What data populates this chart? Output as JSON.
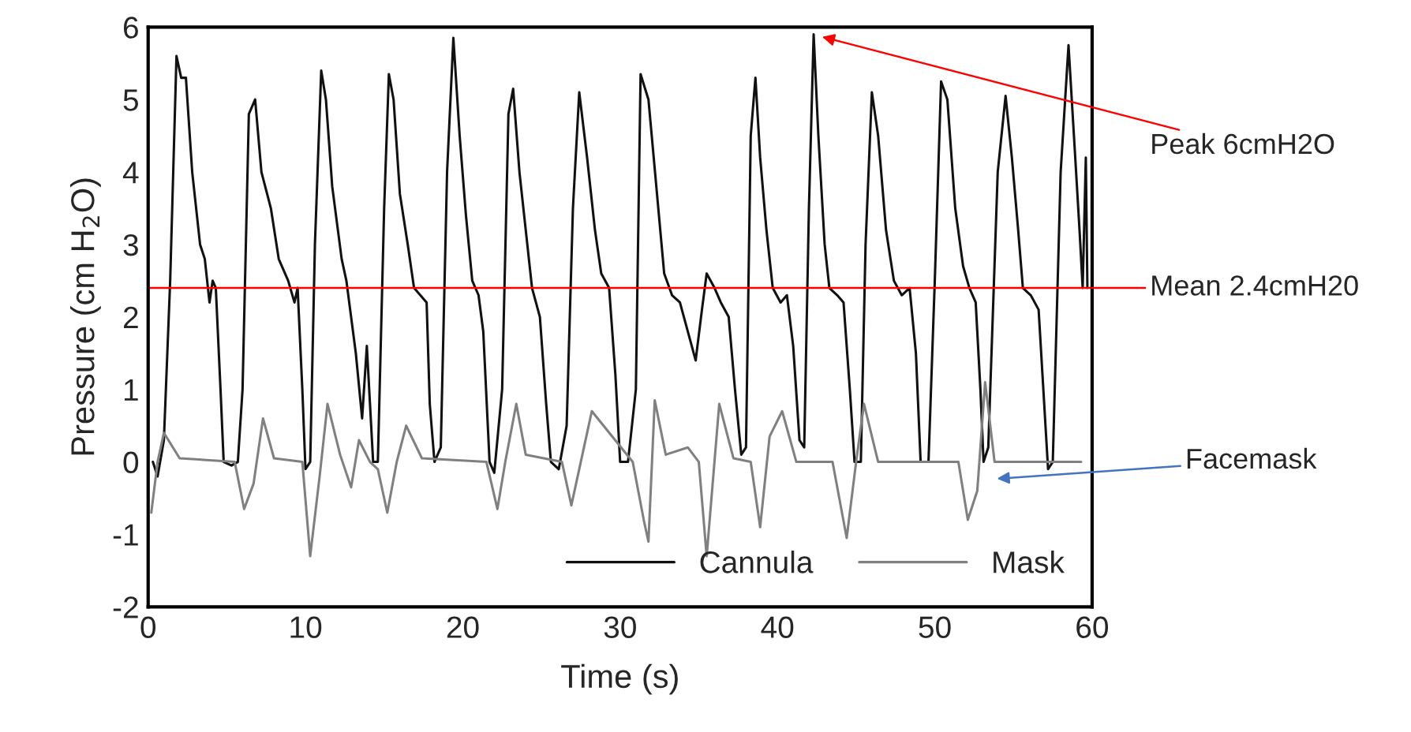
{
  "chart_data": {
    "type": "line",
    "xlabel": "Time (s)",
    "ylabel": "Pressure (cm H$_{2}$O)",
    "xlim": [
      0,
      60
    ],
    "xticks": [
      0,
      10,
      20,
      30,
      40,
      50,
      60
    ],
    "ylim": [
      -2,
      6
    ],
    "yticks": [
      -2,
      -1,
      0,
      1,
      2,
      3,
      4,
      5,
      6
    ],
    "grid": false,
    "legend": "bottom right",
    "marker": "none",
    "line_style": "solid",
    "series": [
      {
        "name": "Cannula",
        "color": "#111111",
        "x": [
          0.3,
          0.6,
          1.0,
          1.4,
          1.8,
          2.1,
          2.4,
          2.8,
          3.3,
          3.6,
          3.9,
          4.1,
          4.3,
          4.6,
          4.8,
          5.3,
          5.7,
          6.0,
          6.4,
          6.8,
          7.2,
          7.8,
          8.3,
          8.9,
          9.3,
          9.5,
          9.8,
          10.0,
          10.3,
          10.6,
          11.0,
          11.3,
          11.7,
          12.3,
          12.6,
          13.2,
          13.6,
          13.9,
          14.3,
          14.6,
          15.0,
          15.3,
          15.6,
          16.0,
          16.5,
          16.9,
          17.3,
          17.7,
          17.9,
          18.2,
          18.6,
          19.0,
          19.4,
          19.8,
          20.2,
          20.6,
          21.0,
          21.3,
          21.7,
          22.0,
          22.5,
          22.9,
          23.2,
          23.6,
          24.1,
          24.4,
          24.9,
          25.3,
          25.6,
          26.1,
          26.6,
          27.0,
          27.4,
          27.9,
          28.4,
          28.8,
          29.3,
          29.7,
          30.0,
          30.5,
          31.0,
          31.3,
          31.8,
          32.3,
          32.8,
          33.3,
          33.8,
          34.3,
          34.8,
          35.2,
          35.5,
          36.0,
          36.4,
          36.9,
          37.3,
          37.7,
          38.0,
          38.3,
          38.6,
          38.9,
          39.3,
          39.7,
          40.2,
          40.6,
          41.0,
          41.4,
          41.7,
          42.0,
          42.3,
          42.6,
          43.0,
          43.3,
          43.8,
          44.2,
          44.6,
          44.9,
          45.3,
          45.6,
          46.0,
          46.4,
          46.9,
          47.4,
          47.9,
          48.4,
          48.8,
          49.1,
          49.6,
          50.0,
          50.4,
          50.8,
          51.3,
          51.8,
          52.2,
          52.6,
          52.9,
          53.1,
          53.4,
          54.0,
          54.5,
          54.9,
          55.3,
          55.6,
          56.1,
          56.6,
          56.9,
          57.2,
          57.5,
          58.0,
          58.5,
          58.9,
          59.2,
          59.4,
          59.6,
          59.7
        ],
        "values": [
          0,
          -0.2,
          0.3,
          2.5,
          5.6,
          5.3,
          5.3,
          4.0,
          3.0,
          2.8,
          2.2,
          2.5,
          2.4,
          1.0,
          0,
          -0.05,
          0,
          1.0,
          4.8,
          5.0,
          4.0,
          3.5,
          2.8,
          2.5,
          2.2,
          2.4,
          1.0,
          -0.1,
          0,
          3.0,
          5.4,
          5.0,
          3.8,
          2.8,
          2.5,
          1.5,
          0.6,
          1.6,
          0,
          0,
          3.5,
          5.35,
          5.0,
          3.7,
          3.0,
          2.4,
          2.3,
          2.2,
          0.8,
          0,
          0.2,
          4.0,
          5.85,
          4.5,
          3.4,
          2.5,
          2.3,
          1.8,
          0,
          -0.15,
          1.0,
          4.8,
          5.15,
          4.0,
          3.0,
          2.4,
          2.0,
          0.8,
          0,
          -0.1,
          0.5,
          3.5,
          5.1,
          4.2,
          3.2,
          2.6,
          2.4,
          1.2,
          0,
          0,
          1.0,
          5.35,
          5.0,
          3.8,
          2.6,
          2.3,
          2.2,
          1.8,
          1.4,
          2.1,
          2.6,
          2.4,
          2.2,
          2.0,
          1.0,
          0.1,
          0.2,
          4.5,
          5.3,
          4.2,
          3.2,
          2.4,
          2.2,
          2.3,
          1.6,
          0.3,
          0.2,
          3.5,
          5.9,
          4.5,
          3.0,
          2.4,
          2.3,
          2.2,
          1.0,
          0,
          0,
          3.0,
          5.1,
          4.5,
          3.2,
          2.5,
          2.3,
          2.4,
          1.5,
          0,
          0,
          2.5,
          5.25,
          5.0,
          3.5,
          2.7,
          2.4,
          2.2,
          1.0,
          0,
          0.2,
          4.0,
          5.05,
          4.2,
          3.2,
          2.4,
          2.3,
          2.1,
          1.0,
          -0.1,
          0,
          4.0,
          5.75,
          4.3,
          3.2,
          2.4,
          4.2,
          2.4
        ]
      },
      {
        "name": "Mask",
        "color": "#808080",
        "x": [
          0.2,
          0.6,
          1.0,
          2.0,
          5.5,
          6.1,
          6.7,
          7.3,
          8.0,
          9.8,
          10.3,
          10.9,
          11.4,
          12.2,
          12.9,
          13.4,
          14.1,
          14.6,
          15.2,
          15.8,
          16.4,
          17.4,
          21.5,
          22.2,
          22.7,
          23.4,
          24.0,
          26.3,
          26.9,
          27.5,
          28.2,
          30.8,
          31.5,
          31.8,
          32.2,
          32.9,
          34.3,
          35.0,
          35.5,
          36.3,
          37.2,
          38.3,
          38.9,
          39.5,
          40.3,
          41.2,
          43.5,
          44.4,
          45.0,
          45.5,
          46.4,
          51.5,
          52.1,
          52.7,
          53.2,
          53.8,
          59.3
        ],
        "values": [
          -0.7,
          0,
          0.4,
          0.05,
          0,
          -0.65,
          -0.3,
          0.6,
          0.05,
          0,
          -1.3,
          -0.2,
          0.8,
          0.1,
          -0.35,
          0.3,
          0,
          -0.1,
          -0.7,
          0,
          0.5,
          0.05,
          0,
          -0.65,
          0,
          0.8,
          0.1,
          0,
          -0.6,
          0,
          0.7,
          0,
          -0.8,
          -1.1,
          0.85,
          0.1,
          0.2,
          0,
          -1.3,
          0.8,
          0.05,
          0,
          -0.9,
          0.35,
          0.7,
          0,
          0,
          -1.05,
          0,
          0.8,
          0,
          0,
          -0.8,
          -0.4,
          1.1,
          0,
          0
        ]
      }
    ],
    "ref_lines": [
      {
        "axis": "y",
        "value": 2.4,
        "label": "Mean 2.4cmH20",
        "color": "#ff0000"
      }
    ],
    "annotations": [
      "Peak 6cmH2O",
      "Facemask"
    ]
  }
}
